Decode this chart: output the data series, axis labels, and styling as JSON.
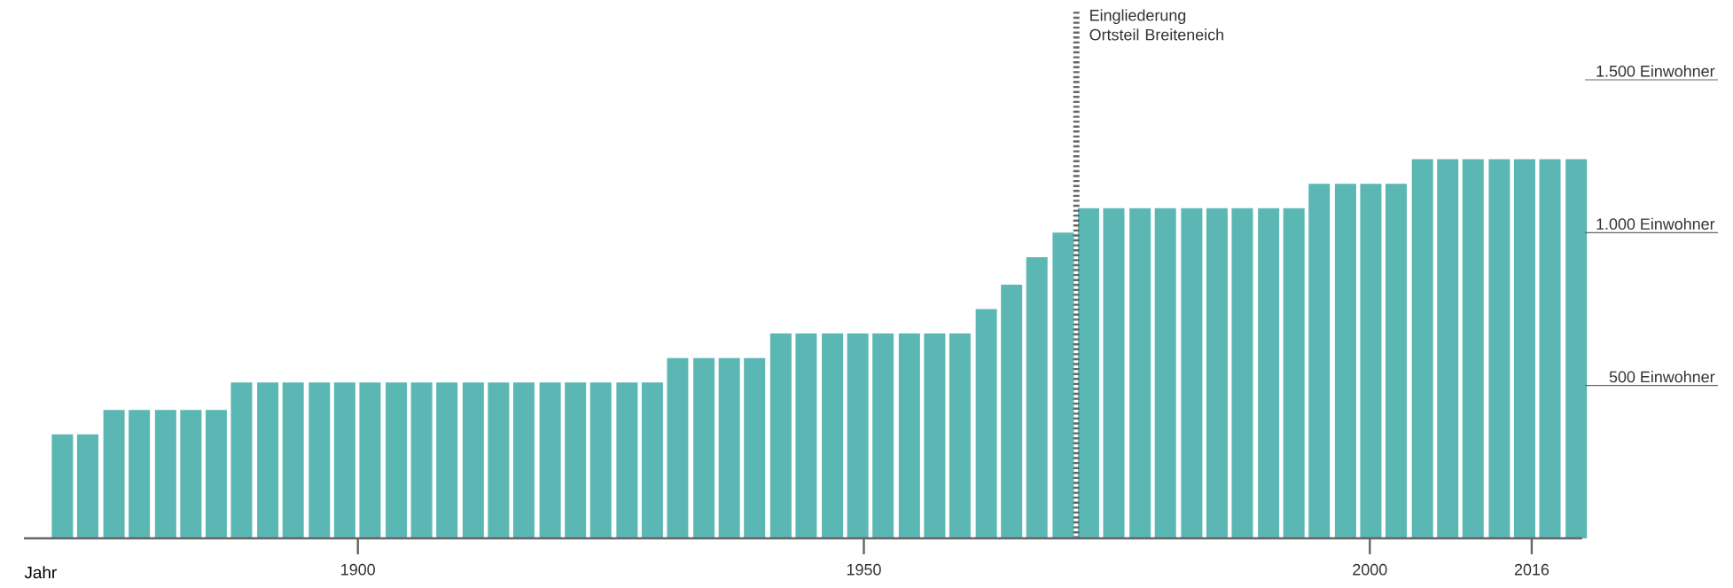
{
  "chart_data": {
    "type": "bar",
    "xlabel": "Jahr",
    "color": "#5bb7b3",
    "x": [
      1870.8,
      1873.3,
      1875.9,
      1878.4,
      1881.0,
      1883.5,
      1886.0,
      1888.5,
      1891.1,
      1893.6,
      1896.2,
      1898.7,
      1901.2,
      1903.8,
      1906.3,
      1908.8,
      1911.4,
      1913.9,
      1916.4,
      1919.0,
      1921.5,
      1924.0,
      1926.6,
      1929.1,
      1931.6,
      1934.2,
      1936.7,
      1939.2,
      1941.8,
      1944.3,
      1946.9,
      1949.4,
      1951.9,
      1954.5,
      1957.0,
      1959.5,
      1962.1,
      1964.6,
      1967.1,
      1969.7,
      1972.2,
      1974.7,
      1977.3,
      1979.8,
      1982.4,
      1984.9,
      1987.4,
      1990.0,
      1992.5,
      1995.0,
      1997.6,
      2000.1,
      2002.6,
      2005.2,
      2007.7,
      2010.2,
      2012.8,
      2015.3,
      2017.8,
      2020.4
    ],
    "values": [
      340,
      340,
      420,
      420,
      420,
      420,
      420,
      510,
      510,
      510,
      510,
      510,
      510,
      510,
      510,
      510,
      510,
      510,
      510,
      510,
      510,
      510,
      510,
      510,
      590,
      590,
      590,
      590,
      670,
      670,
      670,
      670,
      670,
      670,
      670,
      670,
      750,
      830,
      920,
      1000,
      1080,
      1080,
      1080,
      1080,
      1080,
      1080,
      1080,
      1080,
      1080,
      1160,
      1160,
      1160,
      1160,
      1240,
      1240,
      1240,
      1240,
      1240,
      1240,
      1240
    ],
    "xlim": [
      1867,
      2021
    ],
    "xticks": [
      1900,
      1950,
      2000,
      2016
    ],
    "ylim": [
      0,
      1500
    ],
    "yticks": [
      {
        "value": 500,
        "label": "500 Einwohner"
      },
      {
        "value": 1000,
        "label": "1.000 Einwohner"
      },
      {
        "value": 1500,
        "label": "1.500 Einwohner"
      }
    ],
    "ref_lines": [
      {
        "axis": "x",
        "value": 1971,
        "label": "Eingliederung Ortsteil Breiteneich",
        "line_style": "dotted"
      }
    ]
  }
}
